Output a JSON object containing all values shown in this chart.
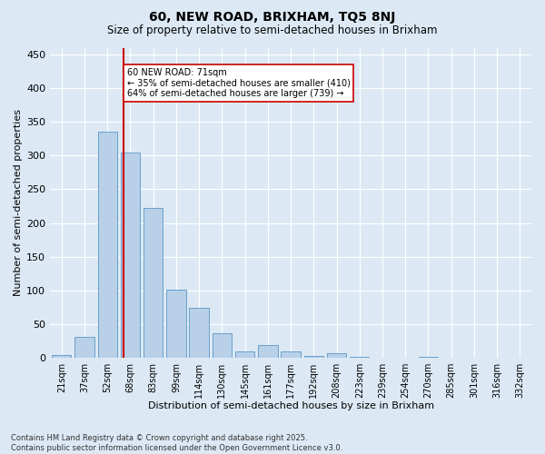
{
  "title_line1": "60, NEW ROAD, BRIXHAM, TQ5 8NJ",
  "title_line2": "Size of property relative to semi-detached houses in Brixham",
  "xlabel": "Distribution of semi-detached houses by size in Brixham",
  "ylabel": "Number of semi-detached properties",
  "categories": [
    "21sqm",
    "37sqm",
    "52sqm",
    "68sqm",
    "83sqm",
    "99sqm",
    "114sqm",
    "130sqm",
    "145sqm",
    "161sqm",
    "177sqm",
    "192sqm",
    "208sqm",
    "223sqm",
    "239sqm",
    "254sqm",
    "270sqm",
    "285sqm",
    "301sqm",
    "316sqm",
    "332sqm"
  ],
  "values": [
    4,
    31,
    335,
    305,
    222,
    101,
    74,
    37,
    10,
    19,
    10,
    3,
    7,
    1,
    0,
    0,
    1,
    0,
    0,
    0,
    0
  ],
  "bar_color": "#b8d0e8",
  "bar_edge_color": "#6aa0cc",
  "vline_color": "#cc0000",
  "vline_x_index": 3,
  "annotation_text": "60 NEW ROAD: 71sqm\n← 35% of semi-detached houses are smaller (410)\n64% of semi-detached houses are larger (739) →",
  "annotation_box_color": "#ffffff",
  "annotation_box_edge": "#cc0000",
  "background_color": "#dce9f5",
  "plot_bg_color": "#dce9f5",
  "footer_text": "Contains HM Land Registry data © Crown copyright and database right 2025.\nContains public sector information licensed under the Open Government Licence v3.0.",
  "ylim": [
    0,
    460
  ],
  "yticks": [
    0,
    50,
    100,
    150,
    200,
    250,
    300,
    350,
    400,
    450
  ],
  "figwidth": 6.0,
  "figheight": 5.0,
  "dpi": 100
}
